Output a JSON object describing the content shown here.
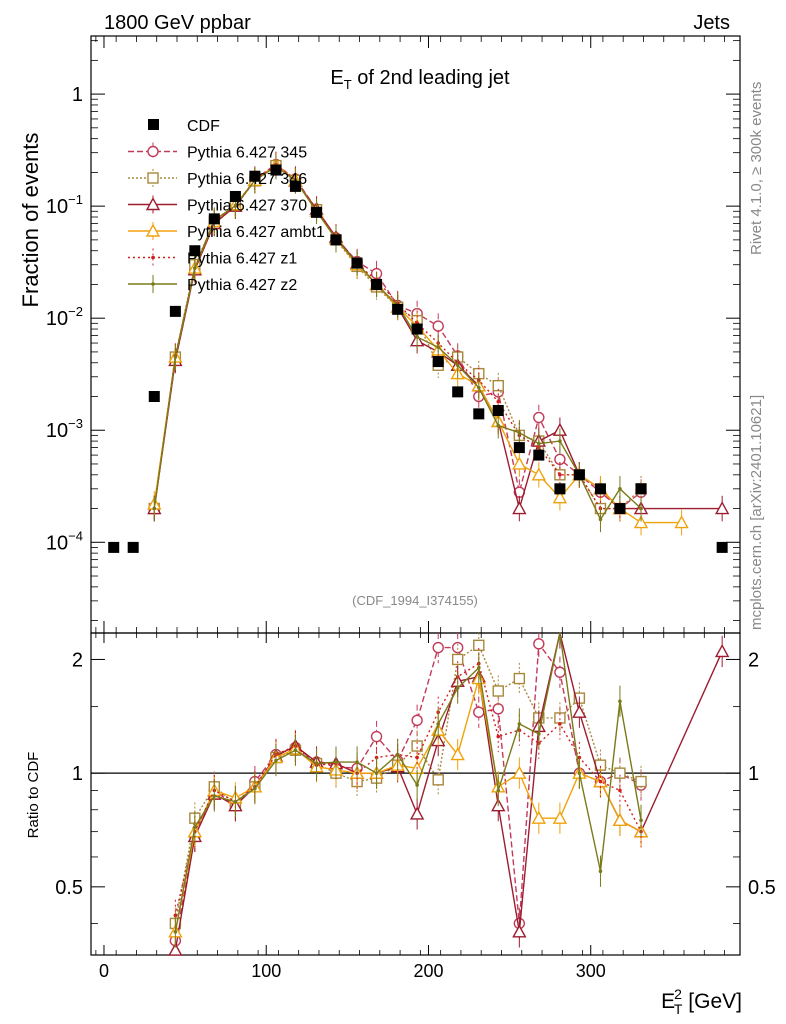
{
  "header": {
    "left": "1800 GeV ppbar",
    "right": "Jets"
  },
  "side_labels": {
    "top": "Rivet 4.1.0, ≥ 300k events",
    "bottom": "mcplots.cern.ch [arXiv:2401.10621]"
  },
  "watermark": "(CDF_1994_I374155)",
  "chart_data": {
    "type": "line",
    "title_main": "E",
    "title_sub": "T",
    "title_rest": " of 2nd leading jet",
    "xlabel_main": "E",
    "xlabel_sup": "2",
    "xlabel_sub": "T",
    "xlabel_unit": " [GeV]",
    "ylabel": "Fraction of events",
    "ratio_ylabel": "Ratio to CDF",
    "xlim": [
      -8,
      392
    ],
    "ylim": [
      1.55e-05,
      3.3
    ],
    "ratio_ylim": [
      0.33,
      2.35
    ],
    "x_ticks": [
      0,
      100,
      200,
      300
    ],
    "y_ticks": [
      {
        "value": 1,
        "label": "1"
      },
      {
        "value": 0.1,
        "label_base": "10",
        "label_exp": "−1"
      },
      {
        "value": 0.01,
        "label_base": "10",
        "label_exp": "−2"
      },
      {
        "value": 0.001,
        "label_base": "10",
        "label_exp": "−3"
      },
      {
        "value": 0.0001,
        "label_base": "10",
        "label_exp": "−4"
      }
    ],
    "ratio_ticks": [
      {
        "value": 0.5,
        "label": "0.5"
      },
      {
        "value": 1,
        "label": "1"
      },
      {
        "value": 2,
        "label": "2"
      }
    ],
    "data": {
      "name": "CDF",
      "color": "#000000",
      "x": [
        6,
        18,
        31,
        44,
        56,
        68,
        81,
        93,
        106,
        118,
        131,
        143,
        156,
        168,
        181,
        193,
        206,
        218,
        231,
        243,
        256,
        268,
        281,
        293,
        306,
        318,
        331,
        381
      ],
      "y": [
        9e-05,
        9e-05,
        0.002,
        0.0115,
        0.04,
        0.077,
        0.122,
        0.185,
        0.21,
        0.15,
        0.088,
        0.05,
        0.031,
        0.02,
        0.012,
        0.008,
        0.0041,
        0.0022,
        0.0014,
        0.0015,
        0.0007,
        0.0006,
        0.0003,
        0.0004,
        0.0003,
        0.0002,
        0.0003,
        9e-05
      ]
    },
    "series": [
      {
        "name": "Pythia 6.427 345",
        "color": "#c23a5a",
        "dash": "6,3",
        "marker": "circle",
        "x": [
          31,
          44,
          56,
          68,
          81,
          93,
          106,
          118,
          131,
          143,
          156,
          168,
          181,
          193,
          206,
          218,
          231,
          243,
          256,
          268,
          281,
          293,
          306,
          318,
          331
        ],
        "y": [
          0.0002,
          0.0042,
          0.027,
          0.07,
          0.1,
          0.175,
          0.235,
          0.175,
          0.094,
          0.052,
          0.032,
          0.025,
          0.013,
          0.011,
          0.0085,
          0.0046,
          0.002,
          0.0022,
          0.00028,
          0.0013,
          0.00055,
          0.0004,
          0.00028,
          0.0002,
          0.00028
        ],
        "ratio": [
          null,
          0.36,
          0.68,
          0.9,
          0.82,
          0.95,
          1.12,
          1.17,
          1.07,
          1.04,
          1.03,
          1.25,
          1.08,
          1.38,
          2.15,
          2.15,
          1.45,
          1.48,
          0.4,
          2.2,
          1.85,
          1.0,
          0.95,
          1.0,
          0.93
        ]
      },
      {
        "name": "Pythia 6.427 346",
        "color": "#a8883c",
        "dash": "2,2",
        "marker": "square",
        "x": [
          31,
          44,
          56,
          68,
          81,
          93,
          106,
          118,
          131,
          143,
          156,
          168,
          181,
          193,
          206,
          218,
          231,
          243,
          256,
          268,
          281,
          293,
          306,
          318,
          331
        ],
        "y": [
          0.0002,
          0.0045,
          0.03,
          0.072,
          0.1,
          0.168,
          0.23,
          0.17,
          0.093,
          0.05,
          0.029,
          0.019,
          0.0125,
          0.0095,
          0.0038,
          0.0045,
          0.0032,
          0.0025,
          0.0009,
          0.0008,
          0.0004,
          0.0004,
          0.0002,
          0.0002,
          0.0003
        ],
        "ratio": [
          null,
          0.4,
          0.76,
          0.92,
          0.83,
          0.92,
          1.1,
          1.15,
          1.06,
          1.0,
          0.95,
          0.97,
          1.05,
          1.18,
          0.96,
          2.0,
          2.18,
          1.65,
          1.78,
          1.4,
          1.4,
          1.58,
          1.05,
          1.0,
          0.95
        ]
      },
      {
        "name": "Pythia 6.427 370",
        "color": "#9b1d2f",
        "dash": "",
        "marker": "triangle",
        "x": [
          31,
          44,
          56,
          68,
          81,
          93,
          106,
          118,
          131,
          143,
          156,
          168,
          181,
          193,
          206,
          218,
          231,
          243,
          256,
          268,
          281,
          293,
          306,
          318,
          331,
          381
        ],
        "y": [
          0.0002,
          0.0042,
          0.027,
          0.07,
          0.1,
          0.17,
          0.232,
          0.168,
          0.094,
          0.053,
          0.031,
          0.02,
          0.0125,
          0.0063,
          0.005,
          0.0038,
          0.0025,
          0.0012,
          0.0002,
          0.0008,
          0.001,
          0.0004,
          0.0003,
          0.0002,
          0.0002,
          0.0002
        ],
        "ratio": [
          null,
          0.34,
          0.68,
          0.88,
          0.82,
          0.92,
          1.11,
          1.18,
          1.07,
          1.06,
          1.0,
          1.0,
          1.04,
          0.78,
          1.22,
          1.75,
          1.8,
          0.82,
          0.38,
          1.33,
          2.35,
          1.45,
          0.95,
          0.75,
          0.7,
          2.1
        ]
      },
      {
        "name": "Pythia 6.427 ambt1",
        "color": "#f0a20a",
        "dash": "",
        "marker": "triangle",
        "x": [
          31,
          44,
          56,
          68,
          81,
          93,
          106,
          118,
          131,
          143,
          156,
          168,
          181,
          193,
          206,
          218,
          231,
          243,
          256,
          268,
          281,
          293,
          306,
          318,
          331,
          356
        ],
        "y": [
          0.00022,
          0.0045,
          0.028,
          0.073,
          0.103,
          0.17,
          0.232,
          0.17,
          0.09,
          0.051,
          0.03,
          0.02,
          0.0125,
          0.0085,
          0.0052,
          0.0032,
          0.0025,
          0.0012,
          0.0005,
          0.0004,
          0.00025,
          0.0004,
          0.0003,
          0.0002,
          0.00015,
          0.00015
        ],
        "ratio": [
          null,
          0.38,
          0.7,
          0.9,
          0.86,
          0.92,
          1.1,
          1.16,
          1.04,
          1.02,
          1.0,
          1.0,
          1.05,
          1.03,
          1.3,
          1.12,
          1.78,
          0.92,
          1.0,
          0.76,
          0.76,
          1.0,
          0.95,
          0.75,
          0.7,
          null
        ]
      },
      {
        "name": "Pythia 6.427 z1",
        "color": "#d0201e",
        "dash": "2,3",
        "marker": "dot",
        "x": [
          31,
          44,
          56,
          68,
          81,
          93,
          106,
          118,
          131,
          143,
          156,
          168,
          181,
          193,
          206,
          218,
          231,
          243,
          256,
          268,
          281,
          293,
          306,
          318,
          331
        ],
        "y": [
          0.0002,
          0.0046,
          0.028,
          0.072,
          0.1,
          0.17,
          0.235,
          0.172,
          0.093,
          0.053,
          0.03,
          0.022,
          0.0135,
          0.009,
          0.006,
          0.004,
          0.0028,
          0.0018,
          0.0009,
          0.0007,
          0.0004,
          0.0004,
          0.0002,
          0.0002,
          0.0002
        ],
        "ratio": [
          null,
          0.42,
          0.7,
          0.9,
          0.84,
          0.92,
          1.12,
          1.18,
          1.05,
          1.06,
          1.0,
          1.1,
          1.12,
          1.1,
          1.45,
          1.8,
          1.95,
          1.25,
          1.3,
          1.2,
          1.35,
          1.1,
          0.95,
          0.9,
          0.7
        ]
      },
      {
        "name": "Pythia 6.427 z2",
        "color": "#7a7a1a",
        "dash": "",
        "marker": "dot",
        "x": [
          31,
          44,
          56,
          68,
          81,
          93,
          106,
          118,
          131,
          143,
          156,
          168,
          181,
          193,
          206,
          218,
          231,
          243,
          256,
          268,
          281,
          293,
          306,
          318,
          331
        ],
        "y": [
          0.0002,
          0.0045,
          0.028,
          0.075,
          0.101,
          0.17,
          0.225,
          0.17,
          0.09,
          0.051,
          0.031,
          0.02,
          0.013,
          0.0068,
          0.0055,
          0.0038,
          0.0024,
          0.0011,
          0.00095,
          0.00076,
          0.0008,
          0.0004,
          0.00016,
          0.0003,
          0.0002
        ],
        "ratio": [
          null,
          0.38,
          0.72,
          0.87,
          0.84,
          0.91,
          1.08,
          1.15,
          1.06,
          1.07,
          1.07,
          1.0,
          1.12,
          0.93,
          1.35,
          1.68,
          1.9,
          0.9,
          1.35,
          1.27,
          2.45,
          1.0,
          0.55,
          1.55,
          0.75
        ]
      }
    ]
  }
}
